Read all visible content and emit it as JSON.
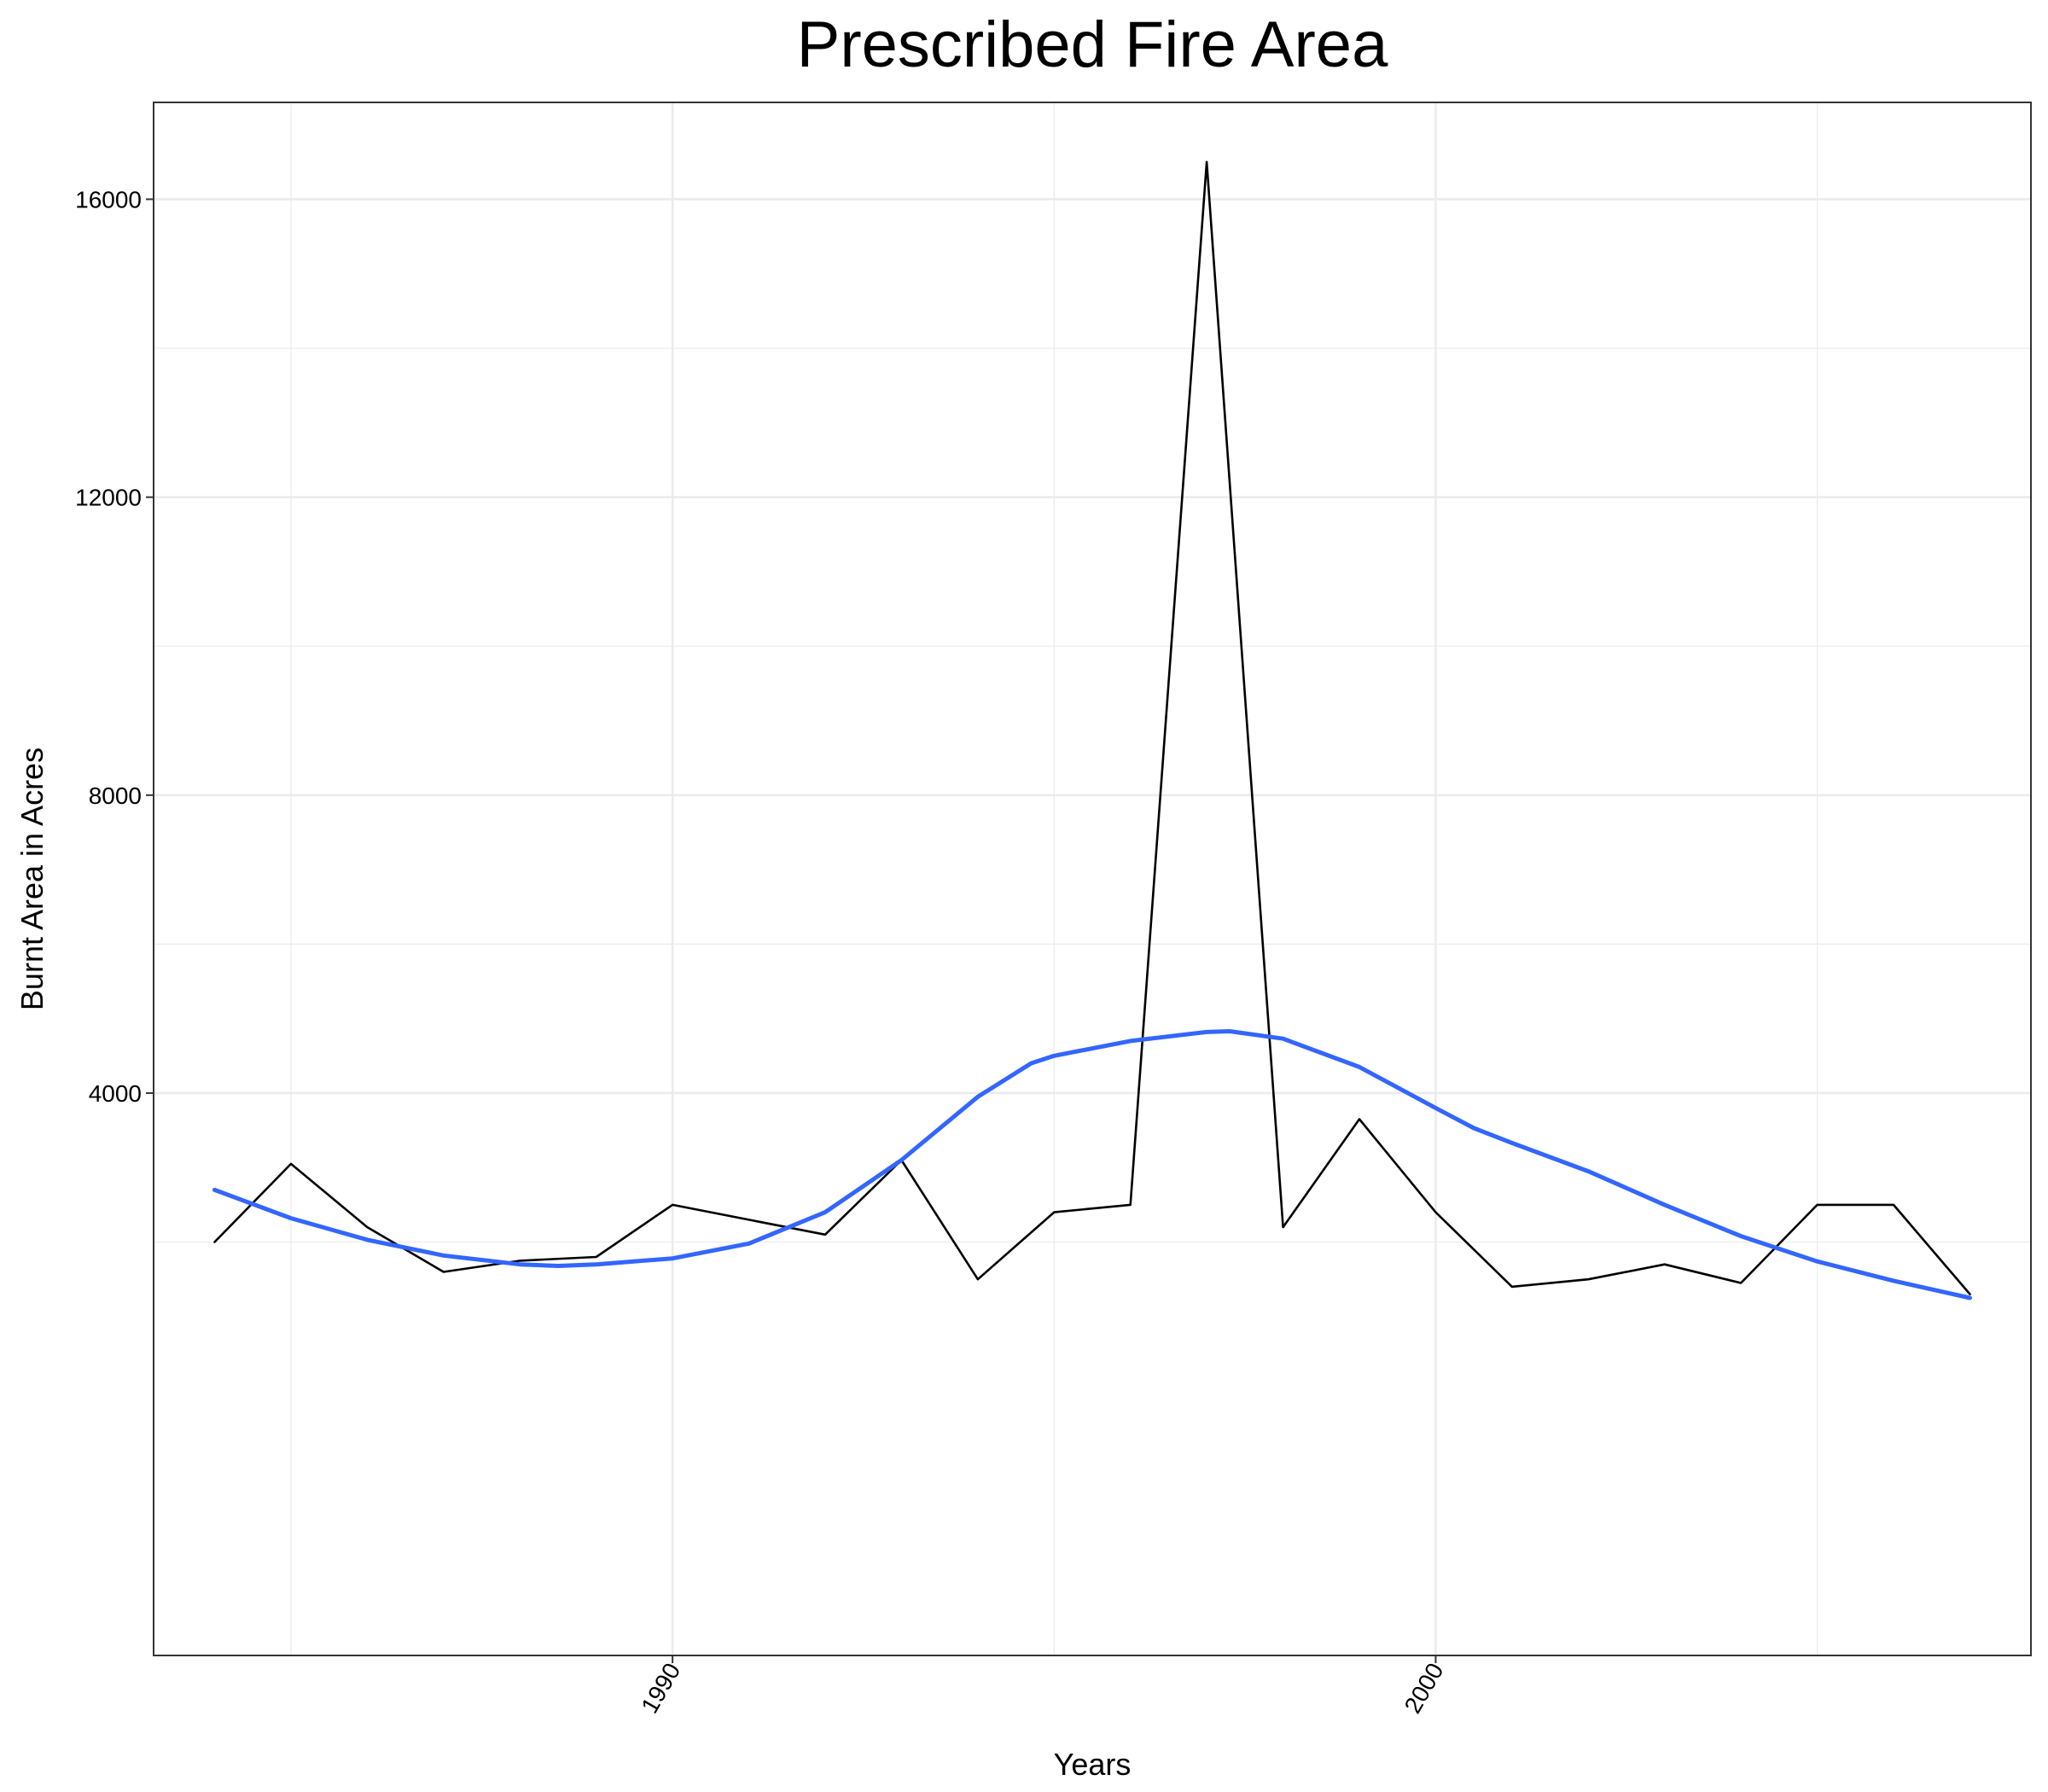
{
  "chart_data": {
    "type": "line",
    "title": "Prescribed Fire Area",
    "xlabel": "Years",
    "ylabel": "Burnt Area in Acres",
    "xlim": [
      1983.2,
      2007.8
    ],
    "ylim": [
      -3550,
      17300
    ],
    "x_ticks": [
      1985,
      1990,
      1995,
      2000,
      2005
    ],
    "x_tick_labels": [
      "1990",
      "2000"
    ],
    "x_labeled_ticks": [
      1990,
      2000
    ],
    "y_ticks": [
      4000,
      8000,
      12000,
      16000
    ],
    "y_minor_ticks": [
      2000,
      6000,
      10000,
      14000
    ],
    "grid": true,
    "legend": "none",
    "colors": {
      "observed": "#000000",
      "smooth": "#3366FF",
      "grid": "#EBEBEB",
      "panel_border": "#333333"
    },
    "series": [
      {
        "style": "line",
        "x": [
          1984,
          1985,
          1986,
          1987,
          1988,
          1989,
          1990,
          1991,
          1992,
          1993,
          1994,
          1995,
          1996,
          1997,
          1998,
          1999,
          2000,
          2001,
          2002,
          2003,
          2004,
          2005,
          2006,
          2007
        ],
        "values": [
          2000,
          3050,
          2200,
          1600,
          1750,
          1800,
          2500,
          2300,
          2100,
          3100,
          1500,
          2400,
          2500,
          16500,
          2200,
          3650,
          2400,
          1400,
          1500,
          1700,
          1450,
          2500,
          2500,
          1300
        ]
      },
      {
        "style": "smooth",
        "x": [
          1984,
          1985,
          1986,
          1987,
          1988,
          1988.5,
          1989,
          1990,
          1991,
          1992,
          1993,
          1994,
          1994.7,
          1995,
          1996,
          1997,
          1997.3,
          1998,
          1999,
          2000,
          2000.5,
          2001,
          2002,
          2003,
          2004,
          2005,
          2006,
          2007
        ],
        "values": [
          2700,
          2320,
          2030,
          1820,
          1700,
          1680,
          1700,
          1780,
          1980,
          2400,
          3100,
          3950,
          4400,
          4500,
          4700,
          4820,
          4830,
          4730,
          4350,
          3800,
          3530,
          3330,
          2950,
          2500,
          2080,
          1740,
          1480,
          1250
        ]
      }
    ]
  }
}
